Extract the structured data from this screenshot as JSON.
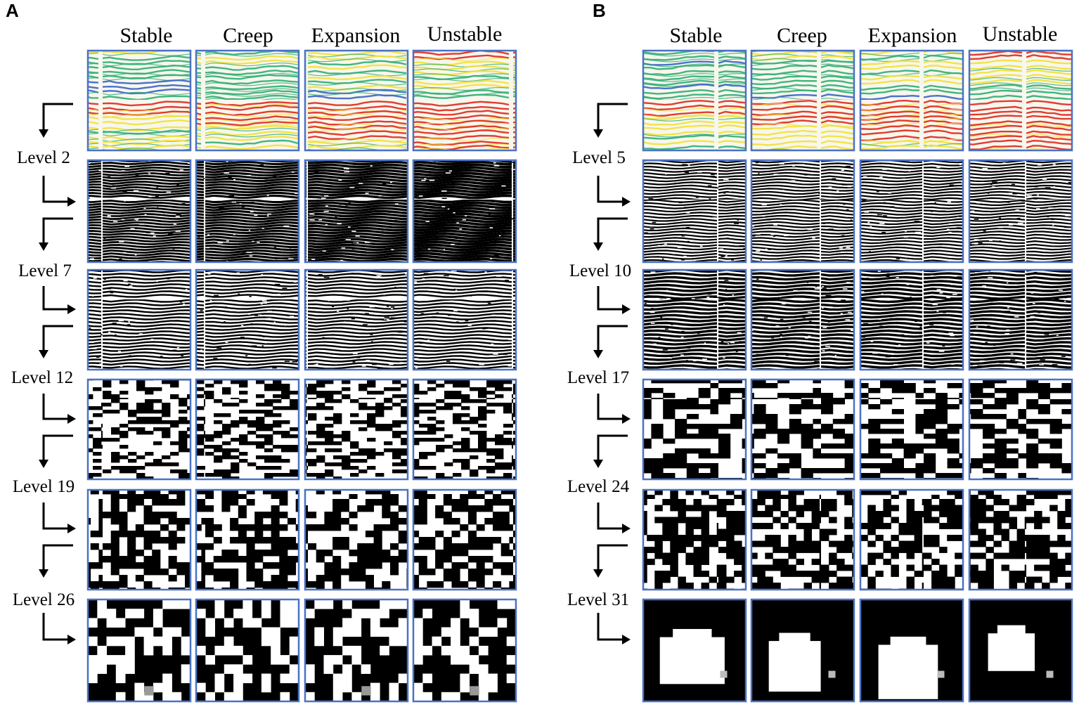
{
  "panels": [
    {
      "letter": "A",
      "columns": [
        "Stable",
        "Creep",
        "Expansion",
        "Unstable"
      ],
      "levels": [
        "Level 2",
        "Level 7",
        "Level 12",
        "Level 19",
        "Level 26"
      ]
    },
    {
      "letter": "B",
      "columns": [
        "Stable",
        "Creep",
        "Expansion",
        "Unstable"
      ],
      "levels": [
        "Level 5",
        "Level 10",
        "Level 17",
        "Level 24",
        "Level 31"
      ]
    }
  ],
  "colors": {
    "frame": "#4a72c4",
    "seismic_high": "#e0281e",
    "seismic_mid": "#f2e23a",
    "seismic_low": "#2fae74",
    "seismic_lowest": "#3a63c8",
    "feature_black": "#000000",
    "feature_white": "#ffffff"
  }
}
